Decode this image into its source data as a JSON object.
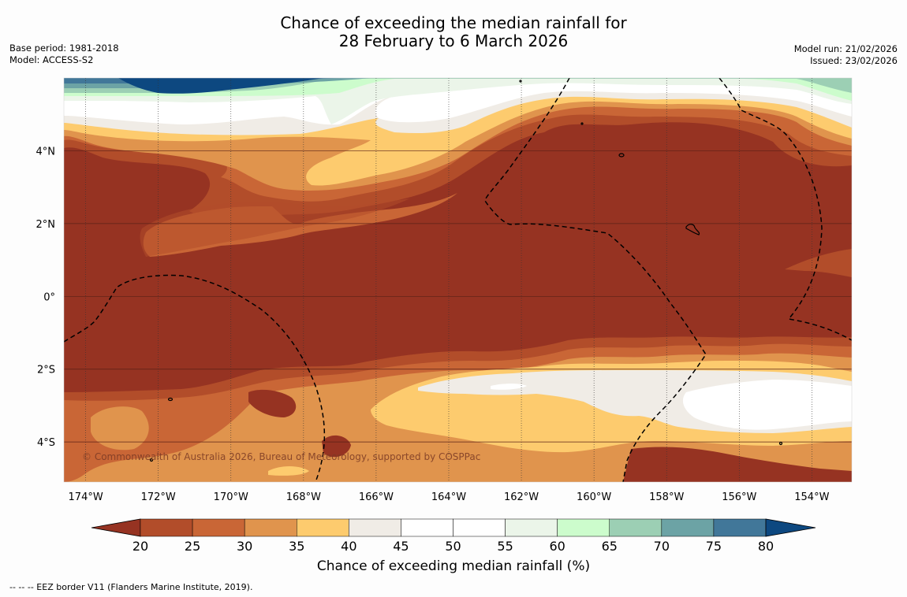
{
  "title": {
    "line1": "Chance of exceeding the median rainfall for",
    "line2": "28 February to 6 March 2026"
  },
  "meta_left": {
    "base_period": "Base period: 1981-2018",
    "model": "Model: ACCESS-S2"
  },
  "meta_right": {
    "model_run": "Model run: 21/02/2026",
    "issued": "Issued: 23/02/2026"
  },
  "map": {
    "lon_range_deg": [
      -174.6,
      -152.9
    ],
    "lat_range_deg": [
      -5.1,
      6.0
    ],
    "lon_ticks": [
      {
        "value": -174,
        "label": "174°W"
      },
      {
        "value": -172,
        "label": "172°W"
      },
      {
        "value": -170,
        "label": "170°W"
      },
      {
        "value": -168,
        "label": "168°W"
      },
      {
        "value": -166,
        "label": "166°W"
      },
      {
        "value": -164,
        "label": "164°W"
      },
      {
        "value": -162,
        "label": "162°W"
      },
      {
        "value": -160,
        "label": "160°W"
      },
      {
        "value": -158,
        "label": "158°W"
      },
      {
        "value": -156,
        "label": "156°W"
      },
      {
        "value": -154,
        "label": "154°W"
      }
    ],
    "lat_ticks": [
      {
        "value": 4,
        "label": "4°N"
      },
      {
        "value": 2,
        "label": "2°N"
      },
      {
        "value": 0,
        "label": "0°"
      },
      {
        "value": -2,
        "label": "2°S"
      },
      {
        "value": -4,
        "label": "4°S"
      }
    ],
    "copyright": "© Commonwealth of Australia 2026, Bureau of Meteorology, supported by COSPPac"
  },
  "colorbar": {
    "levels": [
      20,
      25,
      30,
      35,
      40,
      45,
      50,
      55,
      60,
      65,
      70,
      75,
      80
    ],
    "colors": [
      "#963322",
      "#b24d2a",
      "#c96636",
      "#e0944d",
      "#fdcb6e",
      "#f0ece6",
      "#ffffff",
      "#ffffff",
      "#ebf5e9",
      "#ccfccc",
      "#9ccfb4",
      "#6ca3a5",
      "#417799",
      "#0d4880"
    ],
    "label": "Chance of exceeding median rainfall (%)"
  },
  "footer": "--  --  -- EEZ border V11 (Flanders Marine Institute, 2019)."
}
